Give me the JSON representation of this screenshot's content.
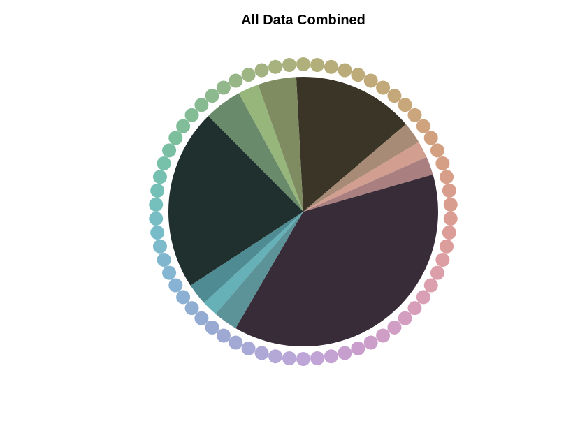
{
  "chart_data": {
    "type": "pie",
    "title": "All Data Combined",
    "slices": [
      {
        "value": 14.6,
        "color": "#3a3526"
      },
      {
        "value": 2.6,
        "color": "#a88b76"
      },
      {
        "value": 2.0,
        "color": "#d19e8f"
      },
      {
        "value": 2.2,
        "color": "#a97f80"
      },
      {
        "value": 37.8,
        "color": "#372c38"
      },
      {
        "value": 2.9,
        "color": "#5c9398"
      },
      {
        "value": 1.9,
        "color": "#66b1b8"
      },
      {
        "value": 2.6,
        "color": "#4f8b92"
      },
      {
        "value": 21.8,
        "color": "#1f302e"
      },
      {
        "value": 4.5,
        "color": "#6a8b6b"
      },
      {
        "value": 2.5,
        "color": "#97b67b"
      },
      {
        "value": 4.6,
        "color": "#7f8c62"
      }
    ],
    "ring_colors": [
      "#b0b07c",
      "#bcab79",
      "#c6a879",
      "#d1a17f",
      "#d89d8b",
      "#dc9c99",
      "#dc9fae",
      "#d29ec4",
      "#c89ecd",
      "#bfa6d8",
      "#aaa9d6",
      "#96a9d2",
      "#88b2d3",
      "#79bccb",
      "#73c0b4",
      "#7cbf9c",
      "#8ab98f",
      "#9fb482"
    ]
  }
}
